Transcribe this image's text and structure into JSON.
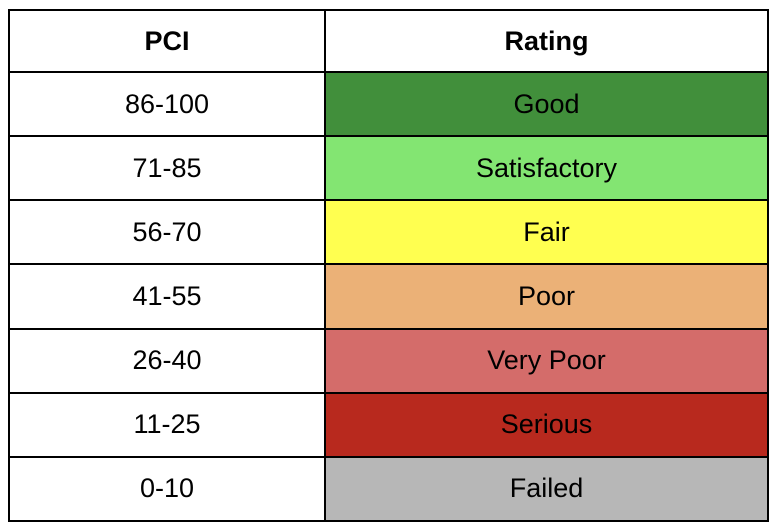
{
  "table": {
    "headers": {
      "pci": "PCI",
      "rating": "Rating"
    },
    "rows": [
      {
        "pci": "86-100",
        "rating": "Good",
        "color": "#418f3b"
      },
      {
        "pci": "71-85",
        "rating": "Satisfactory",
        "color": "#83e572"
      },
      {
        "pci": "56-70",
        "rating": "Fair",
        "color": "#ffff50"
      },
      {
        "pci": "41-55",
        "rating": "Poor",
        "color": "#ebb177"
      },
      {
        "pci": "26-40",
        "rating": "Very Poor",
        "color": "#d46c6a"
      },
      {
        "pci": "11-25",
        "rating": "Serious",
        "color": "#b8291e"
      },
      {
        "pci": "0-10",
        "rating": "Failed",
        "color": "#b7b7b7"
      }
    ]
  }
}
